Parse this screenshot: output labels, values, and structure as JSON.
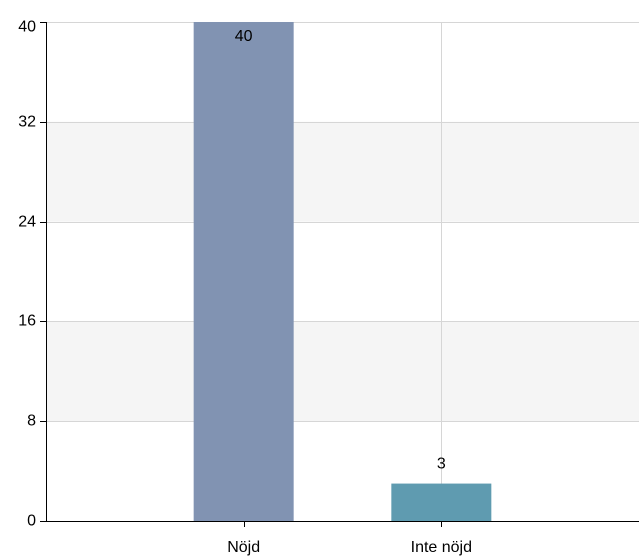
{
  "chart_data": {
    "type": "bar",
    "categories": [
      "Nöjd",
      "Inte nöjd"
    ],
    "values": [
      40,
      3
    ],
    "data_labels": [
      "40",
      "3"
    ],
    "ylim": [
      0,
      40
    ],
    "yticks": [
      0,
      8,
      16,
      24,
      32,
      40
    ],
    "ytick_labels": [
      "0",
      "8",
      "16",
      "24",
      "32",
      "40"
    ],
    "grid": true,
    "alternating_bands": true,
    "colors": {
      "bars": [
        "#8193b2",
        "#5f9bb0"
      ],
      "band": "#f5f5f5",
      "grid": "#d6d6d6",
      "axis": "#000000"
    },
    "title": "",
    "xlabel": "",
    "ylabel": ""
  }
}
